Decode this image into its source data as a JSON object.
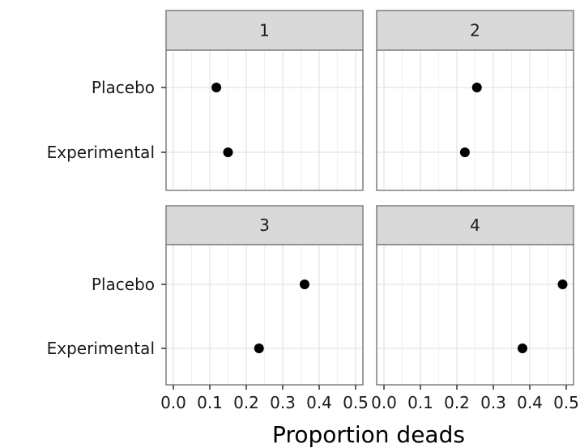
{
  "chart_data": {
    "type": "scatter",
    "xlabel": "Proportion deads",
    "ylabel": "",
    "xlim": [
      -0.02,
      0.52
    ],
    "x_ticks": [
      "0.0",
      "0.1",
      "0.2",
      "0.3",
      "0.4",
      "0.5"
    ],
    "categories": [
      "Placebo",
      "Experimental"
    ],
    "grid": true,
    "facets": [
      {
        "strip": "1",
        "points": [
          {
            "group": "Placebo",
            "x": 0.118
          },
          {
            "group": "Experimental",
            "x": 0.15
          }
        ]
      },
      {
        "strip": "2",
        "points": [
          {
            "group": "Placebo",
            "x": 0.255
          },
          {
            "group": "Experimental",
            "x": 0.222
          }
        ]
      },
      {
        "strip": "3",
        "points": [
          {
            "group": "Placebo",
            "x": 0.36
          },
          {
            "group": "Experimental",
            "x": 0.235
          }
        ]
      },
      {
        "strip": "4",
        "points": [
          {
            "group": "Placebo",
            "x": 0.49
          },
          {
            "group": "Experimental",
            "x": 0.38
          }
        ]
      }
    ]
  }
}
